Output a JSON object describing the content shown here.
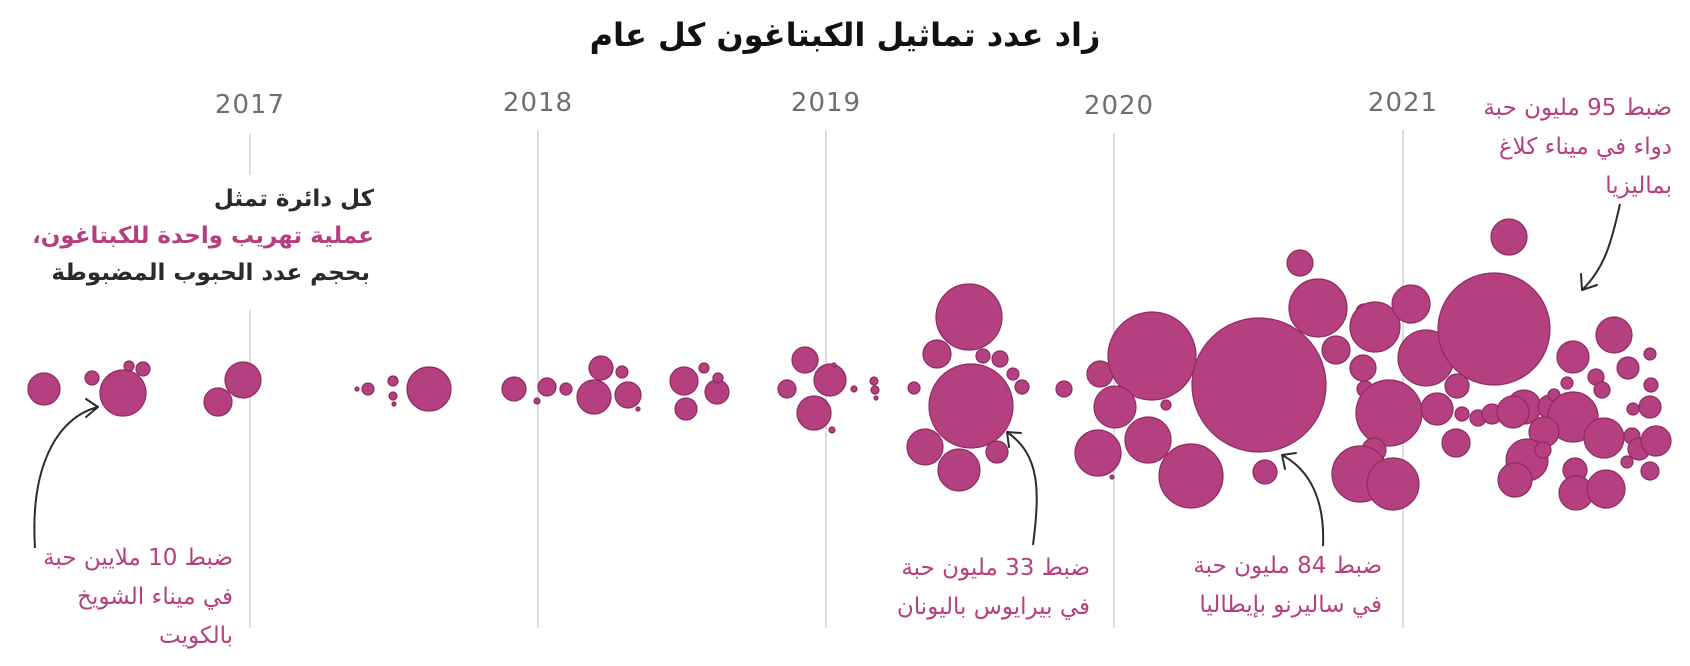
{
  "chart_data": {
    "type": "bubble-timeline",
    "title": "زاد عدد تماثيل الكبتاغون كل عام",
    "years": [
      "2017",
      "2018",
      "2019",
      "2020",
      "2021"
    ],
    "legend": {
      "line1": "كل دائرة تمثل",
      "line2": "عملية تهريب واحدة للكبتاغون،",
      "line3": "بحجم عدد الحبوب المضبوطة"
    },
    "annotations": [
      {
        "id": "kuwait",
        "pills_millions": 10,
        "lines": [
          "ضبط 10 ملايين حبة",
          "في ميناء الشويخ",
          "بالكويت"
        ]
      },
      {
        "id": "greece",
        "pills_millions": 33,
        "lines": [
          "ضبط 33 مليون حبة",
          "في بيرايوس باليونان"
        ]
      },
      {
        "id": "italy",
        "pills_millions": 84,
        "lines": [
          "ضبط 84 مليون حبة",
          "في ساليرنو بإيطاليا"
        ]
      },
      {
        "id": "malaysia",
        "pills_millions": 95,
        "lines": [
          "ضبط 95 مليون حبة",
          "دواء في ميناء كلاغ",
          "بماليزيا"
        ]
      }
    ],
    "colors": {
      "bubble": "#b4407f",
      "bubble_stroke": "#8f2a63",
      "annotation": "#b4407f",
      "grid": "#c8c8c8"
    }
  }
}
